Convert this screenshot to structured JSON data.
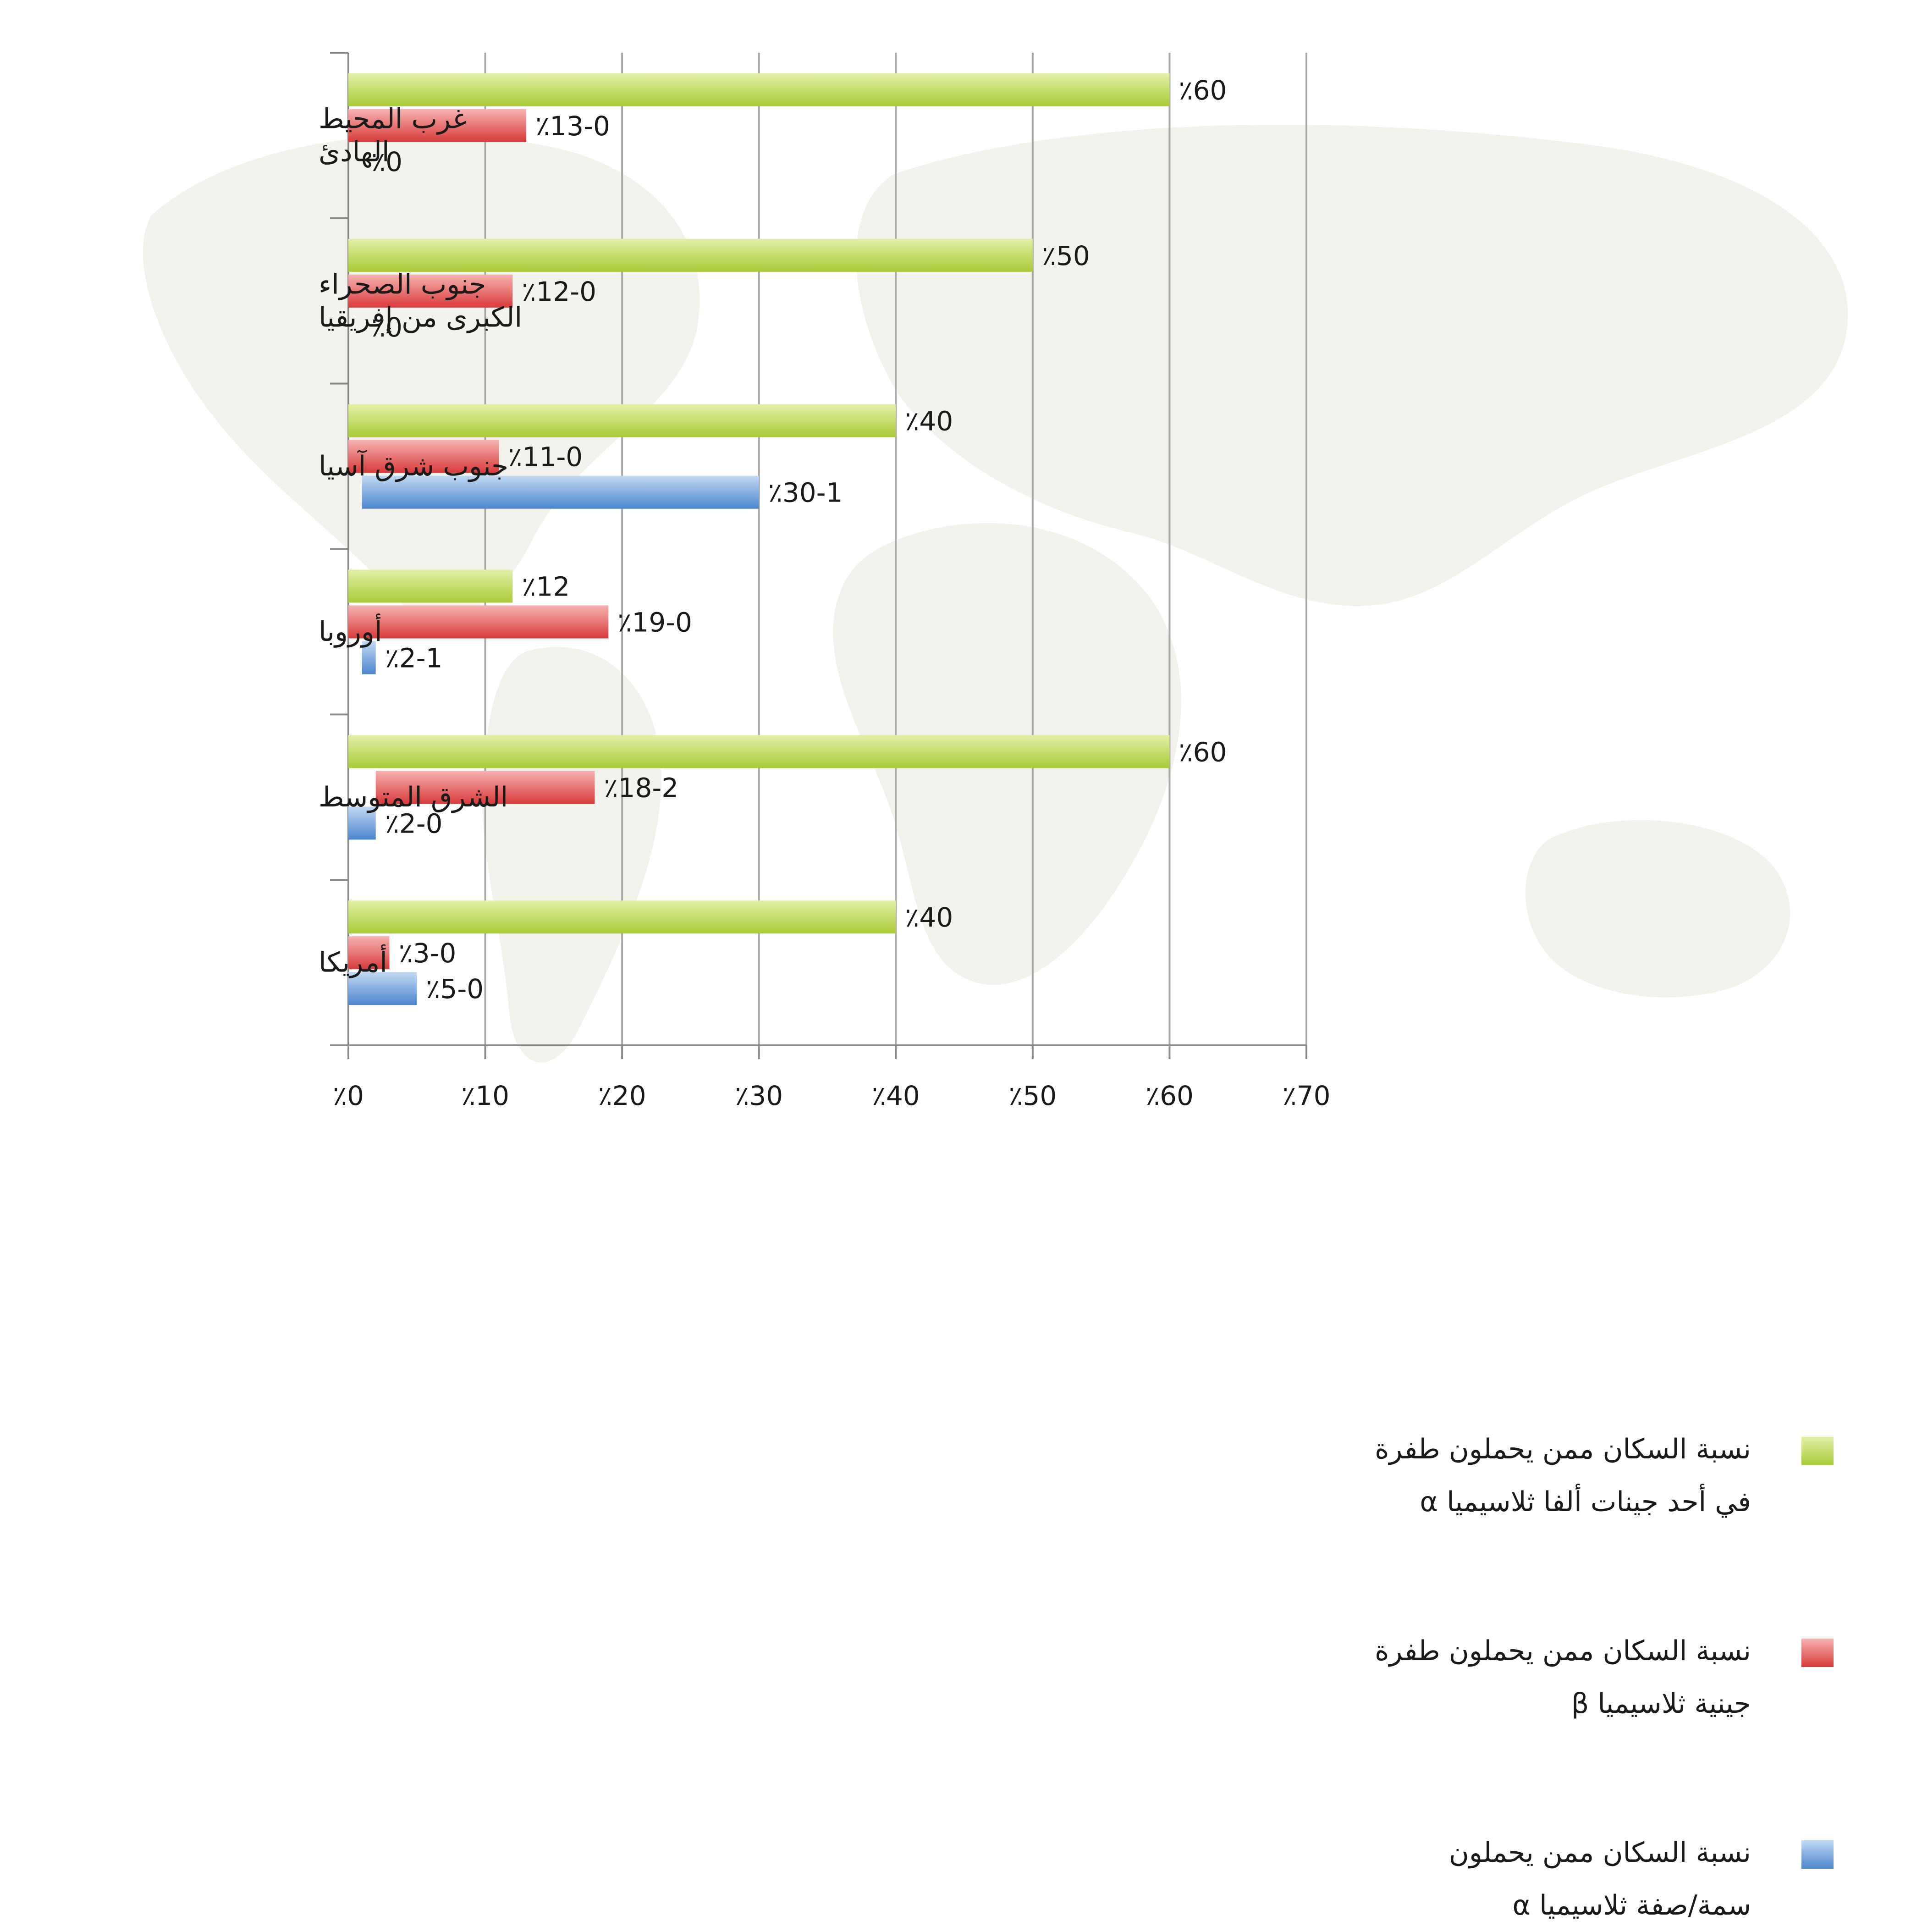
{
  "chart_data": {
    "type": "bar",
    "orientation": "horizontal",
    "categories": [
      "غرب المحيط الهادئ",
      "جنوب الصحراء الكبرى من إفريقيا",
      "جنوب شرق آسيا",
      "أوروبا",
      "الشرق المتوسط",
      "أمريكا"
    ],
    "series": [
      {
        "name": "نسبة السكان ممن يحملون طفرة في أحد جينات ألفا ثلاسيميا α",
        "color": "#b7d74a",
        "ranges": [
          [
            0,
            60
          ],
          [
            0,
            50
          ],
          [
            0,
            40
          ],
          [
            0,
            12
          ],
          [
            0,
            60
          ],
          [
            0,
            40
          ]
        ],
        "labels": [
          "٪60",
          "٪50",
          "٪40",
          "٪12",
          "٪60",
          "٪40"
        ]
      },
      {
        "name": "نسبة السكان ممن يحملون طفرة جينية ثلاسيميا β",
        "color": "#e04848",
        "ranges": [
          [
            0,
            13
          ],
          [
            0,
            12
          ],
          [
            0,
            11
          ],
          [
            0,
            19
          ],
          [
            2,
            18
          ],
          [
            0,
            3
          ]
        ],
        "labels": [
          "٪13-0",
          "٪12-0",
          "٪11-0",
          "٪19-0",
          "٪18-2",
          "٪3-0"
        ]
      },
      {
        "name": "نسبة السكان ممن يحملون سمة/صفة ثلاسيميا α",
        "color": "#5b93d6",
        "ranges": [
          [
            0,
            0
          ],
          [
            0,
            0
          ],
          [
            1,
            30
          ],
          [
            1,
            2
          ],
          [
            0,
            2
          ],
          [
            0,
            5
          ]
        ],
        "labels": [
          "٪0",
          "٪0",
          "٪30-1",
          "٪2-1",
          "٪2-0",
          "٪5-0"
        ]
      }
    ],
    "xlim": [
      0,
      70
    ],
    "xticks": [
      "٪0",
      "٪10",
      "٪20",
      "٪30",
      "٪40",
      "٪50",
      "٪60",
      "٪70"
    ],
    "grid": "vertical",
    "legend_position": "right"
  },
  "legend_lines": [
    [
      "نسبة السكان ممن يحملون طفرة",
      "في أحد جينات ألفا ثلاسيميا α"
    ],
    [
      "نسبة السكان ممن يحملون طفرة",
      "جينية ثلاسيميا β"
    ],
    [
      "نسبة السكان ممن يحملون",
      "سمة/صفة ثلاسيميا α"
    ]
  ],
  "category_lines": [
    [
      "غرب المحيط",
      "الهادئ"
    ],
    [
      "جنوب الصحراء",
      "الكبرى من إفريقيا"
    ],
    [
      "جنوب شرق آسيا"
    ],
    [
      "أوروبا"
    ],
    [
      "الشرق المتوسط"
    ],
    [
      "أمريكا"
    ]
  ]
}
